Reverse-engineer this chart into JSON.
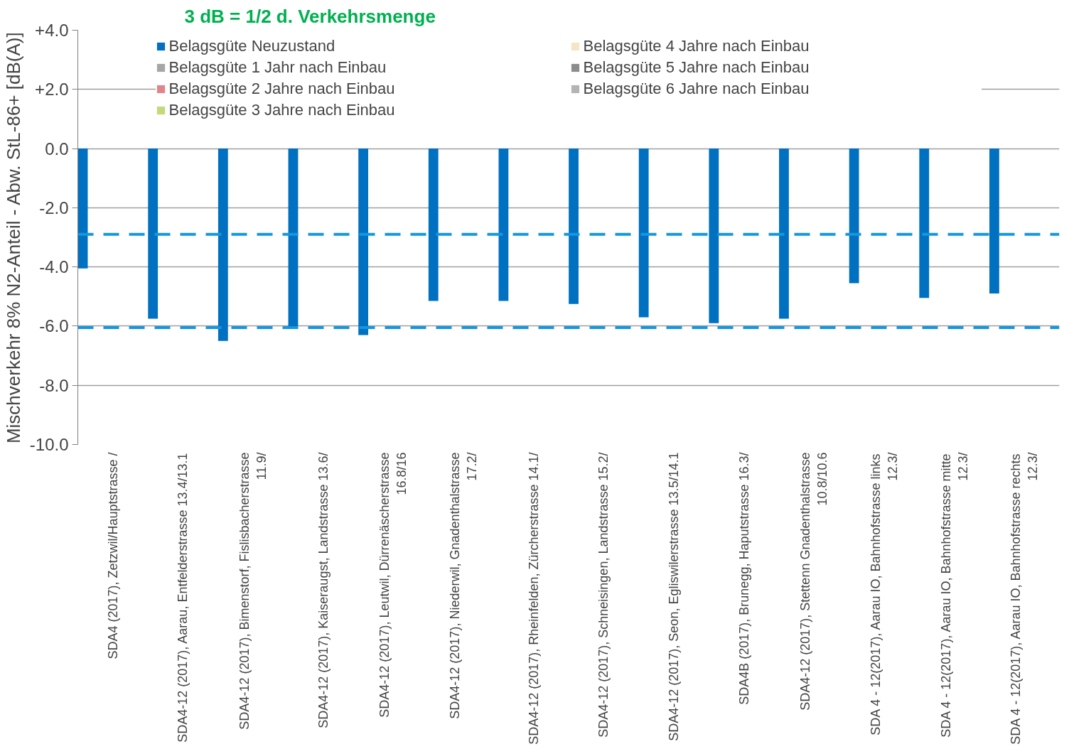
{
  "chart_data": {
    "type": "bar",
    "annotations": [
      "3 dB = 1/2 d. Verkehrsmenge"
    ],
    "ylabel": "Mischverkehr 8% N2-Anteil - Abw. StL-86+ [dB(A)]",
    "categories": [
      "SDA4 (2017), Zetzwil/Hauptstrasse /",
      "SDA4-12 (2017), Aarau, Entfelderstrasse 13.4/13.1",
      "SDA4-12 (2017), Bimenstorf, Fislisbacherstrasse\n11.9/",
      "SDA4-12 (2017), Kaiseraugst, Landstrasse 13.6/",
      "SDA4-12 (2017), Leutwil, Dürrenäscherstrasse\n16.8/16",
      "SDA4-12 (2017), Niederwil, Gnadenthalstrasse\n17.2/",
      "SDA4-12 (2017), Rheinfelden, Zürcherstrasse 14.1/",
      "SDA4-12 (2017), Schneisingen, Landstrasse 15.2/",
      "SDA4-12 (2017), Seon, Egliswilerstrasse 13.5/14.1",
      "SDA4B (2017), Brunegg, Haputstrasse 16.3/",
      "SDA4-12 (2017), Stettenn Gnadenthalstrasse\n10.8/10.6",
      "SDA 4 - 12(2017), Aarau IO, Bahnhofstrasse links\n12.3/",
      "SDA 4 - 12(2017), Aarau IO, Bahnhofstrasse mitte\n12.3/",
      "SDA 4 - 12(2017), Aarau IO, Bahnhofstrasse rechts\n12.3/"
    ],
    "series": [
      {
        "name": "Belagsgüte Neuzustand",
        "color": "#0070c0",
        "values": [
          -4.05,
          -5.75,
          -6.5,
          -6.0,
          -6.3,
          -5.15,
          -5.15,
          -5.25,
          -5.7,
          -5.9,
          -5.75,
          -4.55,
          -5.05,
          -4.9
        ]
      },
      {
        "name": "Belagsgüte 1 Jahr nach Einbau",
        "color": "#a6a6a6",
        "values": [
          null,
          null,
          null,
          null,
          null,
          null,
          null,
          null,
          null,
          null,
          null,
          null,
          null,
          null
        ]
      },
      {
        "name": "Belagsgüte 2 Jahre nach Einbau",
        "color": "#e0868a",
        "values": [
          null,
          null,
          null,
          null,
          null,
          null,
          null,
          null,
          null,
          null,
          null,
          null,
          null,
          null
        ]
      },
      {
        "name": "Belagsgüte 3 Jahre nach Einbau",
        "color": "#c4d97c",
        "values": [
          null,
          null,
          null,
          null,
          null,
          null,
          null,
          null,
          null,
          null,
          null,
          null,
          null,
          null
        ]
      },
      {
        "name": "Belagsgüte 4 Jahre nach Einbau",
        "color": "#f2e6c4",
        "values": [
          null,
          null,
          null,
          null,
          null,
          null,
          null,
          null,
          null,
          null,
          null,
          null,
          null,
          null
        ]
      },
      {
        "name": "Belagsgüte 5 Jahre nach Einbau",
        "color": "#8c8c8c",
        "values": [
          null,
          null,
          null,
          null,
          null,
          null,
          null,
          null,
          null,
          null,
          null,
          null,
          null,
          null
        ]
      },
      {
        "name": "Belagsgüte 6 Jahre nach Einbau",
        "color": "#b4b4b4",
        "values": [
          null,
          null,
          null,
          null,
          null,
          null,
          null,
          null,
          null,
          null,
          null,
          null,
          null,
          null
        ]
      }
    ],
    "ylim": [
      -10,
      4
    ],
    "yticks": [
      {
        "value": 4,
        "label": "+4.0"
      },
      {
        "value": 2,
        "label": "+2.0"
      },
      {
        "value": 0,
        "label": "0.0"
      },
      {
        "value": -2,
        "label": "-2.0"
      },
      {
        "value": -4,
        "label": "-4.0"
      },
      {
        "value": -6,
        "label": "-6.0"
      },
      {
        "value": -8,
        "label": "-8.0"
      },
      {
        "value": -10,
        "label": "-10.0"
      }
    ],
    "ref_lines": [
      {
        "axis": "y",
        "value": -2.9,
        "color": "#1497e0",
        "line_style": "dashed"
      },
      {
        "axis": "y",
        "value": -6.05,
        "color": "#1497e0",
        "line_style": "dashed"
      }
    ],
    "grid": "y",
    "legend": "top"
  }
}
